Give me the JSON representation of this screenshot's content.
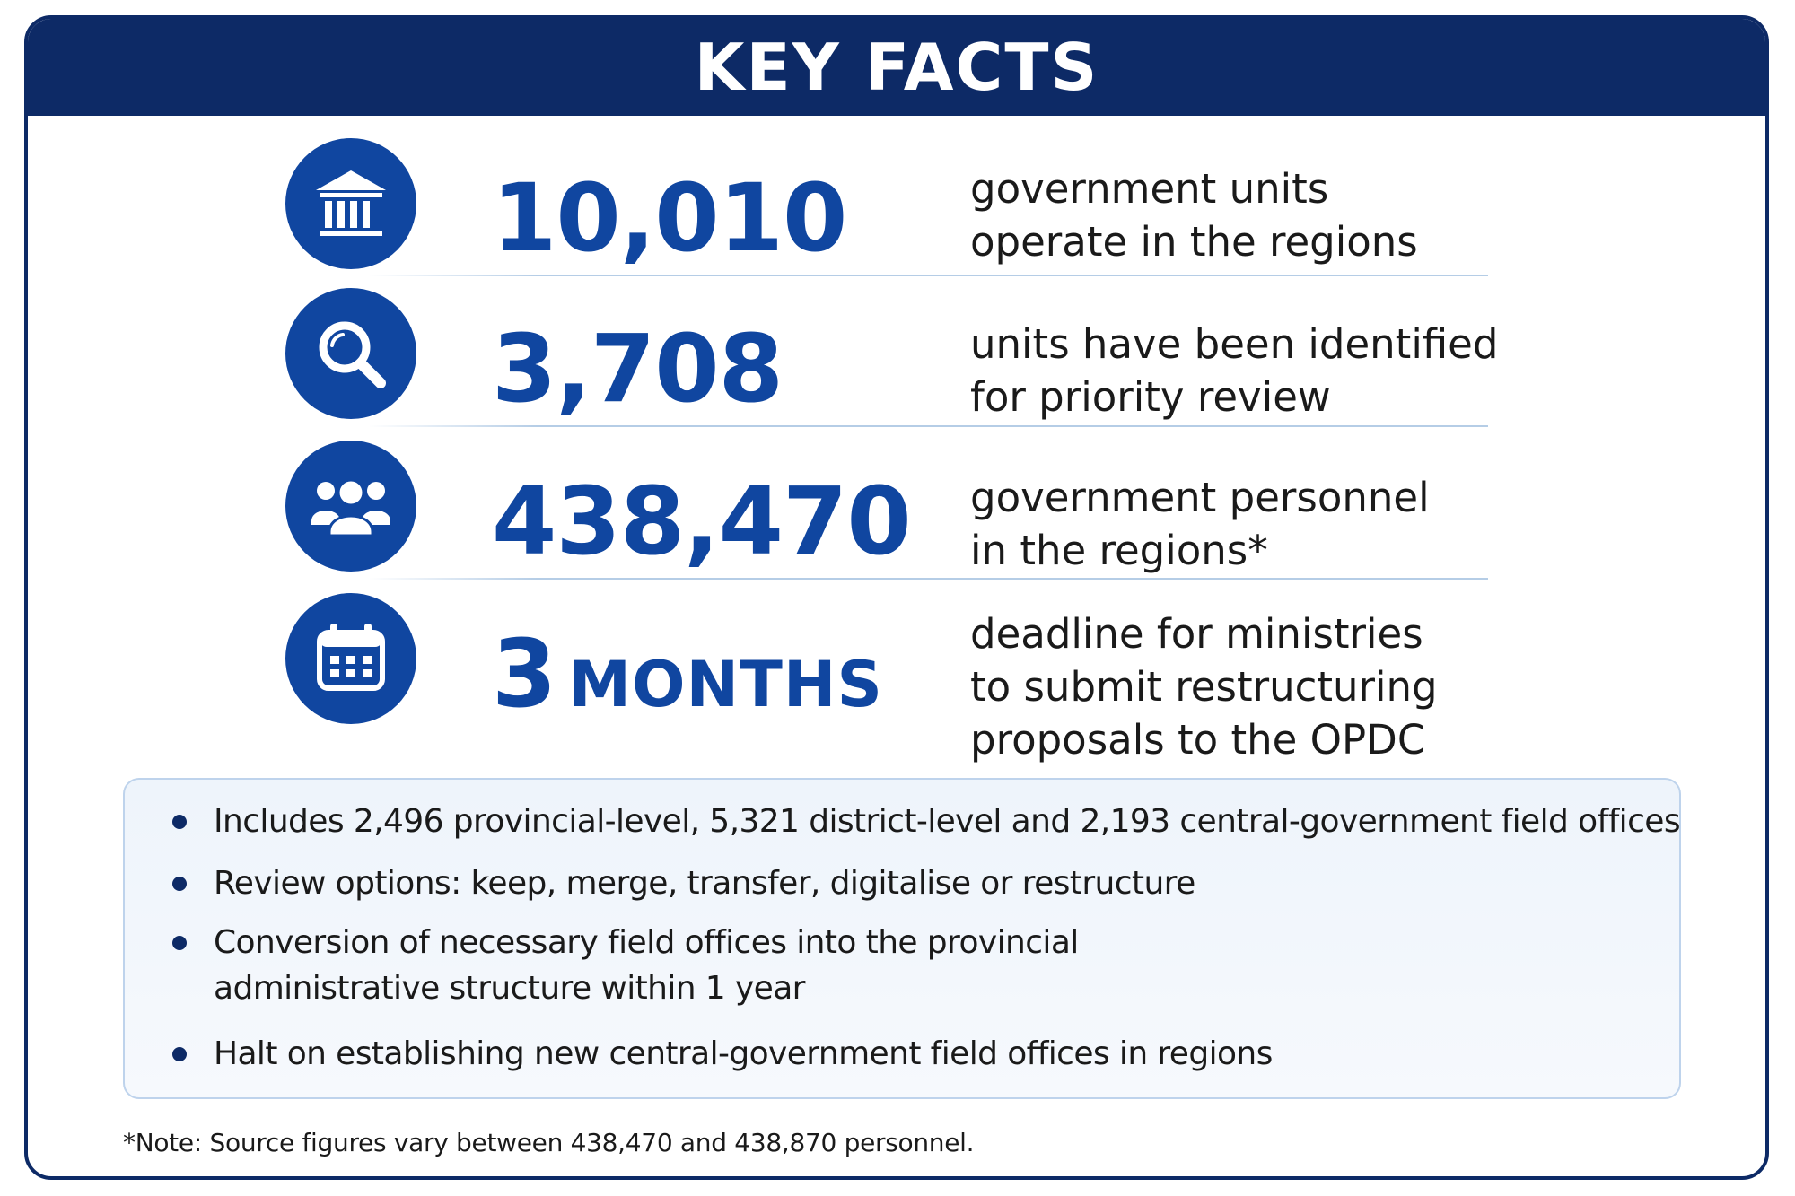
{
  "header": {
    "title": "KEY FACTS"
  },
  "facts": [
    {
      "icon": "government-building-icon",
      "number": "10,010",
      "unit": "",
      "description": [
        "government units",
        "operate in the regions"
      ]
    },
    {
      "icon": "magnifying-glass-icon",
      "number": "3,708",
      "unit": "",
      "description": [
        "units have been identified",
        "for priority review"
      ]
    },
    {
      "icon": "people-group-icon",
      "number": "438,470",
      "unit": "",
      "description": [
        "government personnel",
        "in the regions*"
      ]
    },
    {
      "icon": "calendar-icon",
      "number": "3",
      "unit": "MONTHS",
      "description": [
        "deadline for ministries",
        "to submit restructuring",
        "proposals to the OPDC"
      ]
    }
  ],
  "notes": [
    [
      "Includes 2,496 provincial-level, 5,321 district-level and 2,193 central-government field offices"
    ],
    [
      "Review options: keep, merge, transfer, digitalise or restructure"
    ],
    [
      "Conversion of necessary field offices into the provincial",
      "administrative structure within 1 year"
    ],
    [
      "Halt on establishing new central-government field offices in regions"
    ]
  ],
  "footnote": "*Note: Source figures vary between 438,470 and 438,870 personnel.",
  "colors": {
    "header_bg": "#0d2a66",
    "accent_blue": "#1046a0",
    "divider": "#b5cde6",
    "notes_bg": "#eef4fb"
  }
}
